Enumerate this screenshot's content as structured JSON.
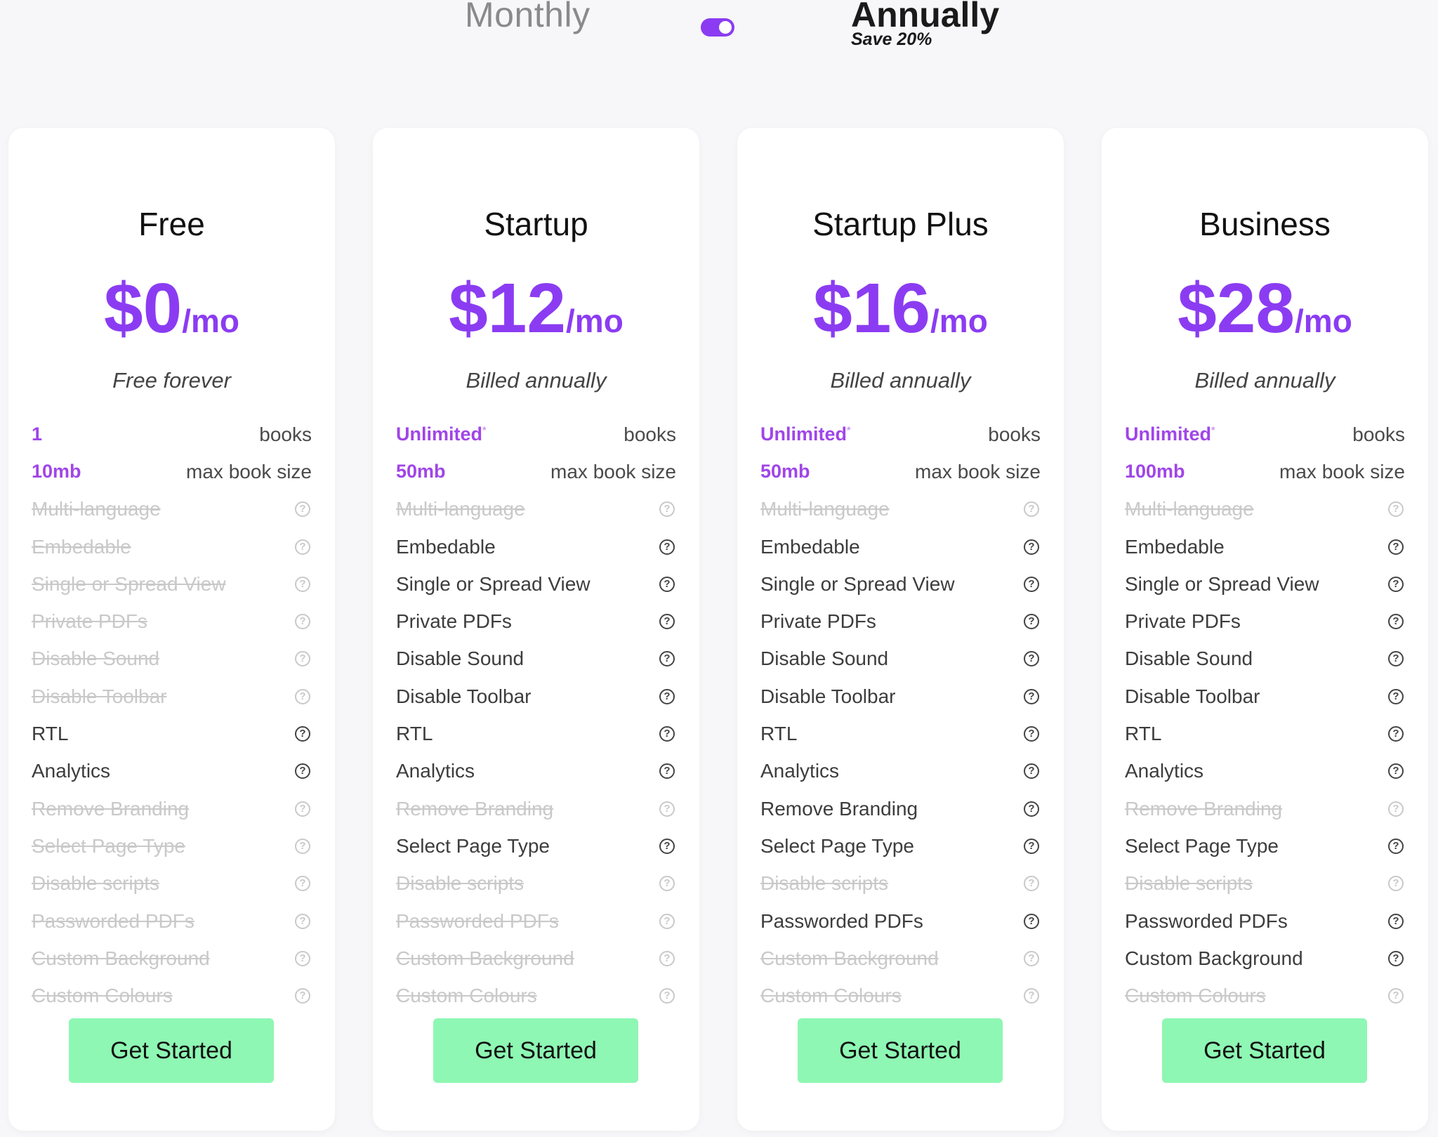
{
  "billing_toggle": {
    "monthly_label": "Monthly",
    "annually_label": "Annually",
    "save_note": "Save 20%",
    "selected": "annually",
    "accent": "#8b3cf2"
  },
  "colors": {
    "price": "#8b3cf2",
    "highlight": "#a045e8",
    "cta_bg": "#8ef7b3"
  },
  "plans": [
    {
      "name": "Free",
      "price": "$0",
      "unit": "/mo",
      "billing": "Free forever",
      "books": {
        "value": "1",
        "star": "",
        "label": "books"
      },
      "size": {
        "value": "10mb",
        "label": "max book size"
      },
      "features": [
        {
          "label": "Multi-language",
          "enabled": false,
          "icon": "question-icon"
        },
        {
          "label": "Embedable",
          "enabled": false,
          "icon": "question-icon"
        },
        {
          "label": "Single or Spread View",
          "enabled": false,
          "icon": "question-icon"
        },
        {
          "label": "Private PDFs",
          "enabled": false,
          "icon": "question-icon"
        },
        {
          "label": "Disable Sound",
          "enabled": false,
          "icon": "question-icon"
        },
        {
          "label": "Disable Toolbar",
          "enabled": false,
          "icon": "question-icon"
        },
        {
          "label": "RTL",
          "enabled": true,
          "icon": "question-icon"
        },
        {
          "label": "Analytics",
          "enabled": true,
          "icon": "question-icon"
        },
        {
          "label": "Remove Branding",
          "enabled": false,
          "icon": "question-icon"
        },
        {
          "label": "Select Page Type",
          "enabled": false,
          "icon": "question-icon"
        },
        {
          "label": "Disable scripts",
          "enabled": false,
          "icon": "question-icon"
        },
        {
          "label": "Passworded PDFs",
          "enabled": false,
          "icon": "question-icon"
        },
        {
          "label": "Custom Background",
          "enabled": false,
          "icon": "question-icon"
        },
        {
          "label": "Custom Colours",
          "enabled": false,
          "icon": "question-icon"
        }
      ],
      "cta": "Get Started"
    },
    {
      "name": "Startup",
      "price": "$12",
      "unit": "/mo",
      "billing": "Billed annually",
      "books": {
        "value": "Unlimited",
        "star": "*",
        "label": "books"
      },
      "size": {
        "value": "50mb",
        "label": "max book size"
      },
      "features": [
        {
          "label": "Multi-language",
          "enabled": false,
          "icon": "question-icon"
        },
        {
          "label": "Embedable",
          "enabled": true,
          "icon": "question-icon"
        },
        {
          "label": "Single or Spread View",
          "enabled": true,
          "icon": "question-icon"
        },
        {
          "label": "Private PDFs",
          "enabled": true,
          "icon": "question-icon"
        },
        {
          "label": "Disable Sound",
          "enabled": true,
          "icon": "question-icon"
        },
        {
          "label": "Disable Toolbar",
          "enabled": true,
          "icon": "question-icon"
        },
        {
          "label": "RTL",
          "enabled": true,
          "icon": "question-icon"
        },
        {
          "label": "Analytics",
          "enabled": true,
          "icon": "question-icon"
        },
        {
          "label": "Remove Branding",
          "enabled": false,
          "icon": "question-icon"
        },
        {
          "label": "Select Page Type",
          "enabled": true,
          "icon": "question-icon"
        },
        {
          "label": "Disable scripts",
          "enabled": false,
          "icon": "question-icon"
        },
        {
          "label": "Passworded PDFs",
          "enabled": false,
          "icon": "question-icon"
        },
        {
          "label": "Custom Background",
          "enabled": false,
          "icon": "question-icon"
        },
        {
          "label": "Custom Colours",
          "enabled": false,
          "icon": "question-icon"
        }
      ],
      "cta": "Get Started"
    },
    {
      "name": "Startup Plus",
      "price": "$16",
      "unit": "/mo",
      "billing": "Billed annually",
      "books": {
        "value": "Unlimited",
        "star": "*",
        "label": "books"
      },
      "size": {
        "value": "50mb",
        "label": "max book size"
      },
      "features": [
        {
          "label": "Multi-language",
          "enabled": false,
          "icon": "question-icon"
        },
        {
          "label": "Embedable",
          "enabled": true,
          "icon": "question-icon"
        },
        {
          "label": "Single or Spread View",
          "enabled": true,
          "icon": "question-icon"
        },
        {
          "label": "Private PDFs",
          "enabled": true,
          "icon": "question-icon"
        },
        {
          "label": "Disable Sound",
          "enabled": true,
          "icon": "question-icon"
        },
        {
          "label": "Disable Toolbar",
          "enabled": true,
          "icon": "question-icon"
        },
        {
          "label": "RTL",
          "enabled": true,
          "icon": "question-icon"
        },
        {
          "label": "Analytics",
          "enabled": true,
          "icon": "question-icon"
        },
        {
          "label": "Remove Branding",
          "enabled": true,
          "icon": "question-icon"
        },
        {
          "label": "Select Page Type",
          "enabled": true,
          "icon": "question-icon"
        },
        {
          "label": "Disable scripts",
          "enabled": false,
          "icon": "question-icon"
        },
        {
          "label": "Passworded PDFs",
          "enabled": true,
          "icon": "question-icon"
        },
        {
          "label": "Custom Background",
          "enabled": false,
          "icon": "question-icon"
        },
        {
          "label": "Custom Colours",
          "enabled": false,
          "icon": "question-icon"
        }
      ],
      "cta": "Get Started"
    },
    {
      "name": "Business",
      "price": "$28",
      "unit": "/mo",
      "billing": "Billed annually",
      "books": {
        "value": "Unlimited",
        "star": "*",
        "label": "books"
      },
      "size": {
        "value": "100mb",
        "label": "max book size"
      },
      "features": [
        {
          "label": "Multi-language",
          "enabled": false,
          "icon": "question-icon"
        },
        {
          "label": "Embedable",
          "enabled": true,
          "icon": "question-icon"
        },
        {
          "label": "Single or Spread View",
          "enabled": true,
          "icon": "question-icon"
        },
        {
          "label": "Private PDFs",
          "enabled": true,
          "icon": "question-icon"
        },
        {
          "label": "Disable Sound",
          "enabled": true,
          "icon": "question-icon"
        },
        {
          "label": "Disable Toolbar",
          "enabled": true,
          "icon": "question-icon"
        },
        {
          "label": "RTL",
          "enabled": true,
          "icon": "question-icon"
        },
        {
          "label": "Analytics",
          "enabled": true,
          "icon": "question-icon"
        },
        {
          "label": "Remove Branding",
          "enabled": false,
          "icon": "question-icon"
        },
        {
          "label": "Select Page Type",
          "enabled": true,
          "icon": "question-icon"
        },
        {
          "label": "Disable scripts",
          "enabled": false,
          "icon": "question-icon"
        },
        {
          "label": "Passworded PDFs",
          "enabled": true,
          "icon": "question-icon"
        },
        {
          "label": "Custom Background",
          "enabled": true,
          "icon": "question-icon"
        },
        {
          "label": "Custom Colours",
          "enabled": false,
          "icon": "question-icon"
        }
      ],
      "cta": "Get Started"
    }
  ]
}
